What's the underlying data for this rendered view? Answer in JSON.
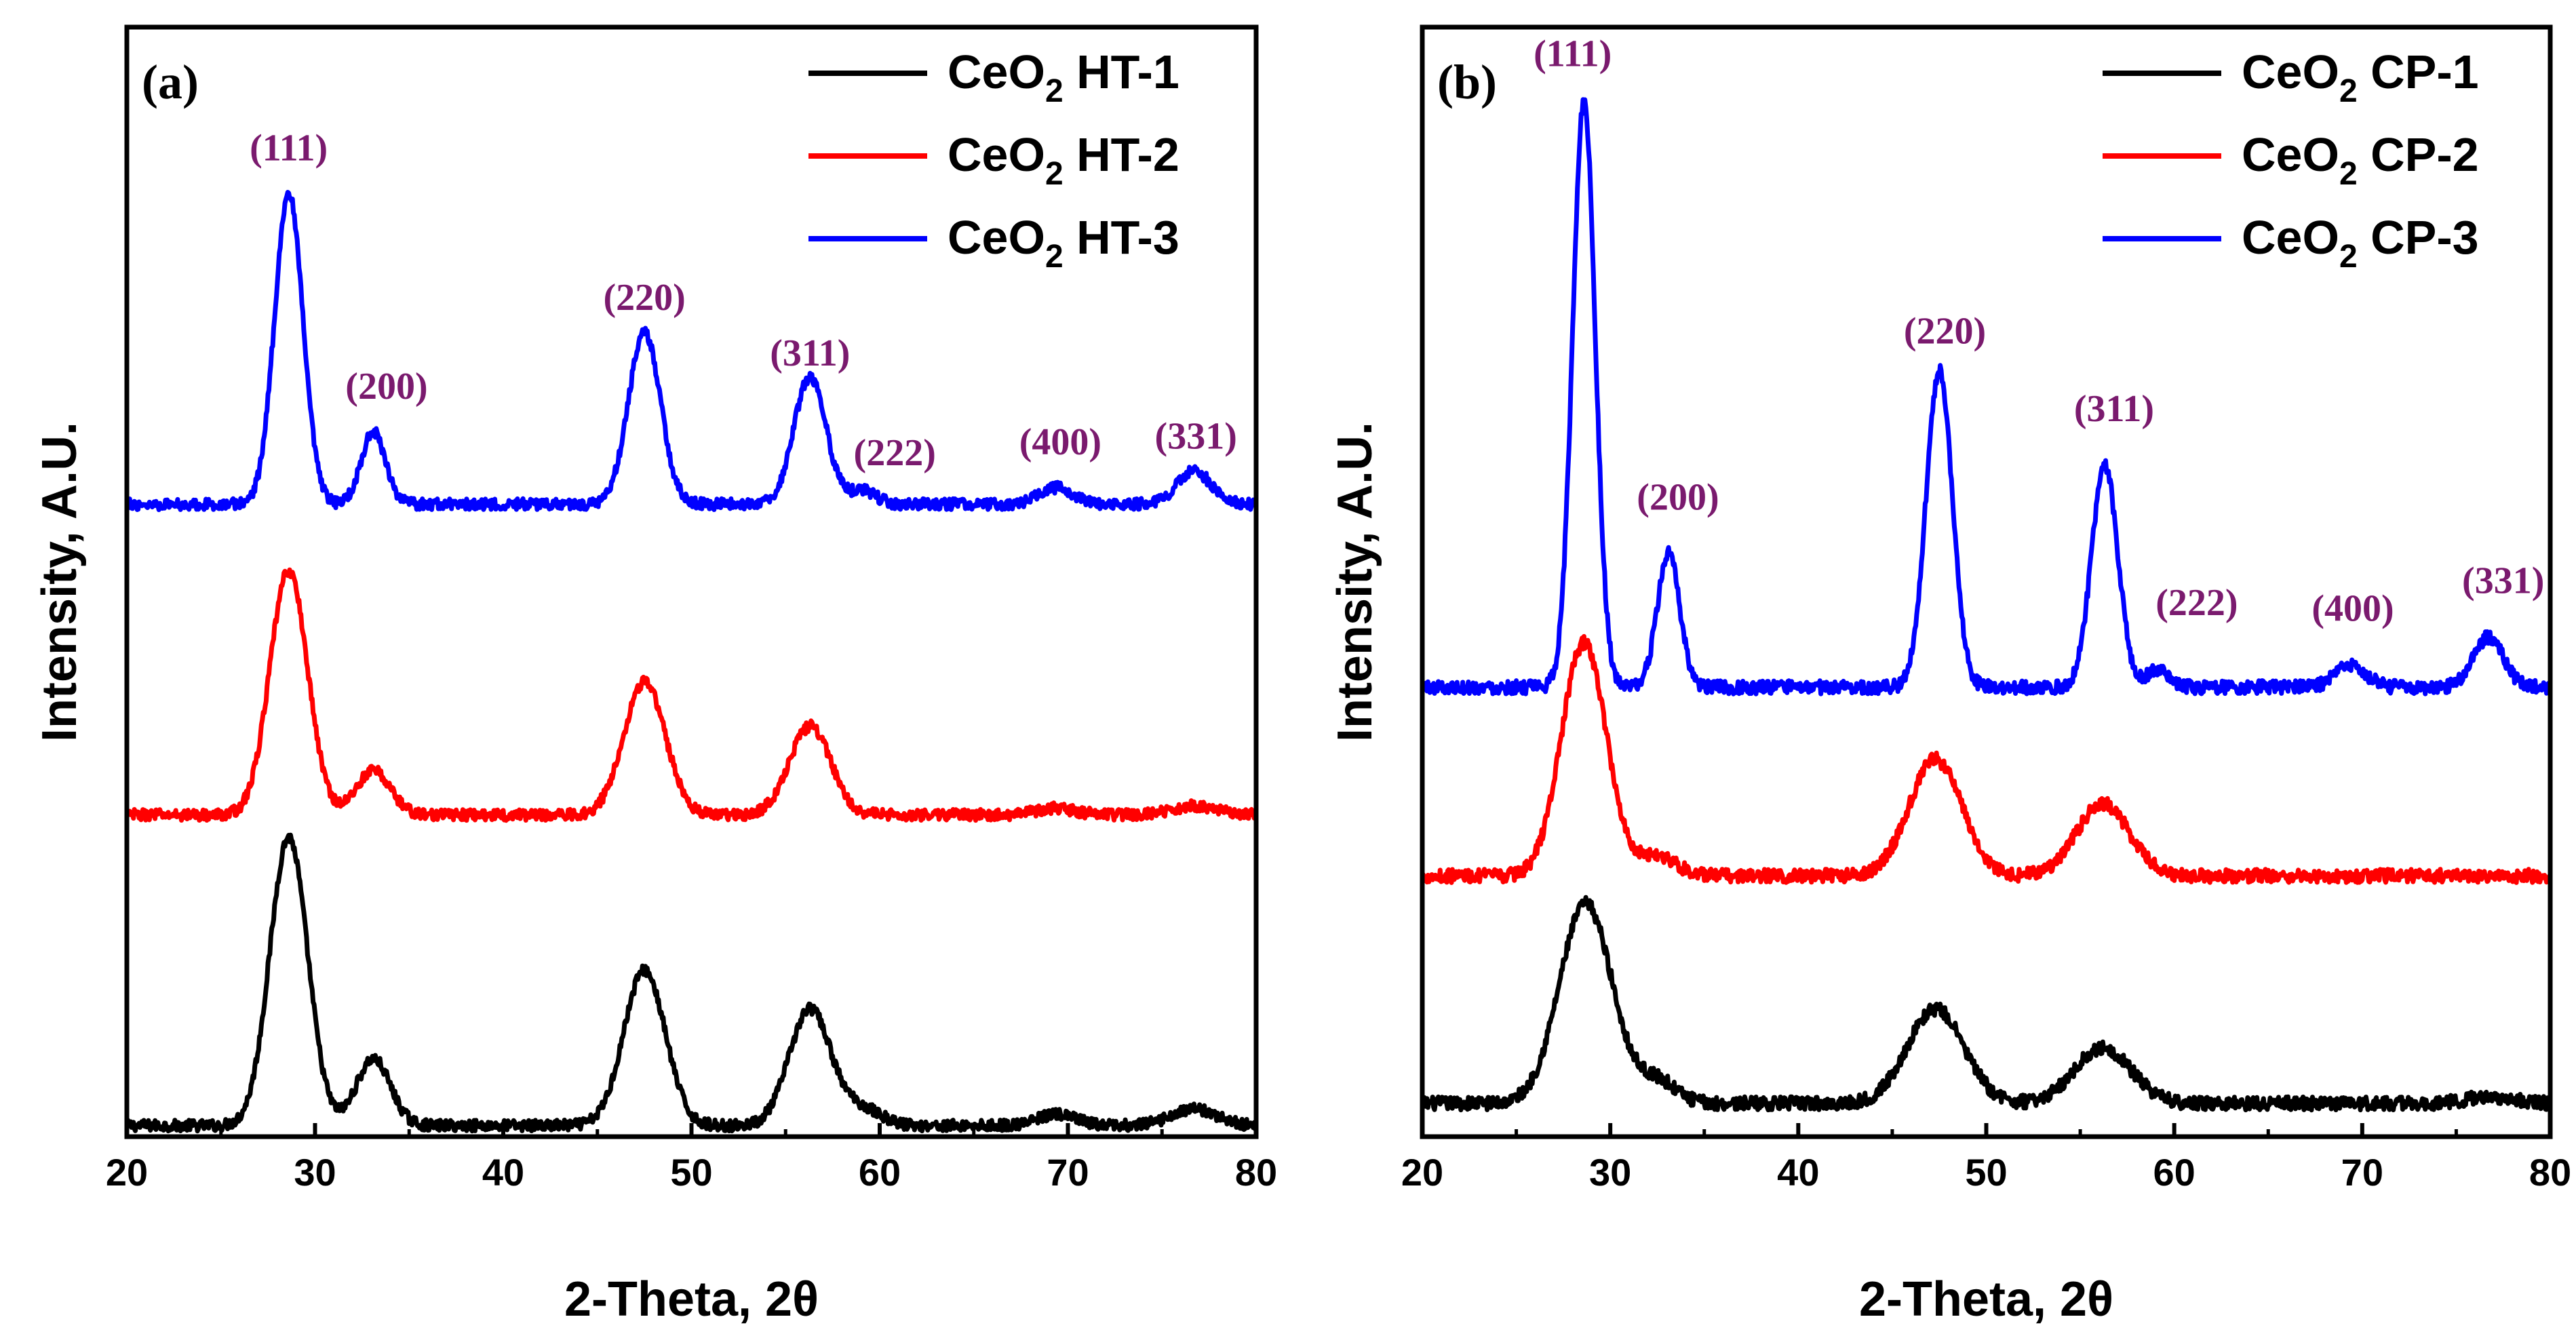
{
  "colors": {
    "series_1": "#000000",
    "series_2": "#ff0000",
    "series_3": "#0000ff",
    "peak_label": "#7a1a6e",
    "axis": "#000000"
  },
  "chart_data": [
    {
      "type": "line",
      "panel_label": "(a)",
      "xlabel": "2-Theta, 2θ",
      "ylabel": "Intensity, A.U.",
      "xlim": [
        20,
        80
      ],
      "ylim": [
        0,
        100
      ],
      "x_ticks": [
        "20",
        "30",
        "40",
        "50",
        "60",
        "70",
        "80"
      ],
      "y_ticks": [],
      "legend": {
        "location": "top-right",
        "entries": [
          {
            "prefix": "CeO",
            "subscript": "2",
            "suffix": " HT-1",
            "color": "#000000"
          },
          {
            "prefix": "CeO",
            "subscript": "2",
            "suffix": " HT-2",
            "color": "#ff0000"
          },
          {
            "prefix": "CeO",
            "subscript": "2",
            "suffix": " HT-3",
            "color": "#0000ff"
          }
        ]
      },
      "series": [
        {
          "name": "CeO2 HT-1",
          "color": "#000000",
          "baseline": 1.0,
          "noise": 0.5,
          "peaks": [
            {
              "x": 28.6,
              "height": 26.0,
              "width": 1.0
            },
            {
              "x": 33.1,
              "height": 6.0,
              "width": 0.9
            },
            {
              "x": 47.5,
              "height": 14.0,
              "width": 1.1
            },
            {
              "x": 56.3,
              "height": 10.5,
              "width": 1.1
            },
            {
              "x": 59.1,
              "height": 1.5,
              "width": 1.0
            },
            {
              "x": 69.4,
              "height": 1.0,
              "width": 1.0
            },
            {
              "x": 76.7,
              "height": 1.5,
              "width": 1.2
            }
          ]
        },
        {
          "name": "CeO2 HT-2",
          "color": "#ff0000",
          "baseline": 29.0,
          "noise": 0.5,
          "peaks": [
            {
              "x": 28.6,
              "height": 22.0,
              "width": 1.0
            },
            {
              "x": 33.1,
              "height": 4.0,
              "width": 0.9
            },
            {
              "x": 47.5,
              "height": 12.0,
              "width": 1.1
            },
            {
              "x": 56.3,
              "height": 8.0,
              "width": 1.1
            },
            {
              "x": 69.4,
              "height": 0.6,
              "width": 1.0
            },
            {
              "x": 76.7,
              "height": 0.8,
              "width": 1.2
            }
          ]
        },
        {
          "name": "CeO2 HT-3",
          "color": "#0000ff",
          "baseline": 57.0,
          "noise": 0.5,
          "peaks": [
            {
              "x": 28.6,
              "height": 28.0,
              "width": 0.75
            },
            {
              "x": 33.1,
              "height": 6.5,
              "width": 0.65
            },
            {
              "x": 47.5,
              "height": 15.5,
              "width": 0.85
            },
            {
              "x": 56.3,
              "height": 11.5,
              "width": 0.85
            },
            {
              "x": 59.1,
              "height": 1.2,
              "width": 0.7
            },
            {
              "x": 69.4,
              "height": 1.5,
              "width": 0.9
            },
            {
              "x": 76.7,
              "height": 3.0,
              "width": 0.9
            }
          ]
        }
      ],
      "annotations": [
        {
          "text": "(111)",
          "x": 28.6,
          "y": 88.0
        },
        {
          "text": "(200)",
          "x": 33.8,
          "y": 66.5
        },
        {
          "text": "(220)",
          "x": 47.5,
          "y": 74.5
        },
        {
          "text": "(311)",
          "x": 56.3,
          "y": 69.5
        },
        {
          "text": "(222)",
          "x": 60.8,
          "y": 60.5
        },
        {
          "text": "(400)",
          "x": 69.6,
          "y": 61.5
        },
        {
          "text": "(331)",
          "x": 76.8,
          "y": 62.0
        }
      ]
    },
    {
      "type": "line",
      "panel_label": "(b)",
      "xlabel": "2-Theta, 2θ",
      "ylabel": "Intensity, A.U.",
      "xlim": [
        20,
        80
      ],
      "ylim": [
        0,
        100
      ],
      "x_ticks": [
        "20",
        "30",
        "40",
        "50",
        "60",
        "70",
        "80"
      ],
      "y_ticks": [],
      "legend": {
        "location": "top-right",
        "entries": [
          {
            "prefix": "CeO",
            "subscript": "2",
            "suffix": " CP-1",
            "color": "#000000"
          },
          {
            "prefix": "CeO",
            "subscript": "2",
            "suffix": " CP-2",
            "color": "#ff0000"
          },
          {
            "prefix": "CeO",
            "subscript": "2",
            "suffix": " CP-3",
            "color": "#0000ff"
          }
        ]
      },
      "series": [
        {
          "name": "CeO2 CP-1",
          "color": "#000000",
          "baseline": 3.0,
          "noise": 0.6,
          "peaks": [
            {
              "x": 28.7,
              "height": 18.0,
              "width": 1.4
            },
            {
              "x": 32.5,
              "height": 2.0,
              "width": 1.0
            },
            {
              "x": 47.3,
              "height": 8.5,
              "width": 1.5
            },
            {
              "x": 56.2,
              "height": 5.0,
              "width": 1.5
            },
            {
              "x": 76.8,
              "height": 0.6,
              "width": 1.2
            }
          ]
        },
        {
          "name": "CeO2 CP-2",
          "color": "#ff0000",
          "baseline": 23.5,
          "noise": 0.6,
          "peaks": [
            {
              "x": 28.6,
              "height": 21.0,
              "width": 1.2
            },
            {
              "x": 32.5,
              "height": 1.8,
              "width": 1.0
            },
            {
              "x": 47.3,
              "height": 10.5,
              "width": 1.4
            },
            {
              "x": 56.2,
              "height": 6.5,
              "width": 1.4
            }
          ]
        },
        {
          "name": "CeO2 CP-3",
          "color": "#0000ff",
          "baseline": 40.5,
          "noise": 0.6,
          "peaks": [
            {
              "x": 28.6,
              "height": 53.0,
              "width": 0.6
            },
            {
              "x": 33.1,
              "height": 12.0,
              "width": 0.6
            },
            {
              "x": 47.5,
              "height": 28.5,
              "width": 0.7
            },
            {
              "x": 56.3,
              "height": 20.0,
              "width": 0.7
            },
            {
              "x": 59.1,
              "height": 1.5,
              "width": 0.6
            },
            {
              "x": 69.4,
              "height": 2.0,
              "width": 0.8
            },
            {
              "x": 76.7,
              "height": 4.5,
              "width": 0.8
            }
          ]
        }
      ],
      "annotations": [
        {
          "text": "(111)",
          "x": 28.0,
          "y": 96.5
        },
        {
          "text": "(200)",
          "x": 33.6,
          "y": 56.5
        },
        {
          "text": "(220)",
          "x": 47.8,
          "y": 71.5
        },
        {
          "text": "(311)",
          "x": 56.8,
          "y": 64.5
        },
        {
          "text": "(222)",
          "x": 61.2,
          "y": 47.0
        },
        {
          "text": "(400)",
          "x": 69.5,
          "y": 46.5
        },
        {
          "text": "(331)",
          "x": 77.5,
          "y": 49.0
        }
      ]
    }
  ]
}
